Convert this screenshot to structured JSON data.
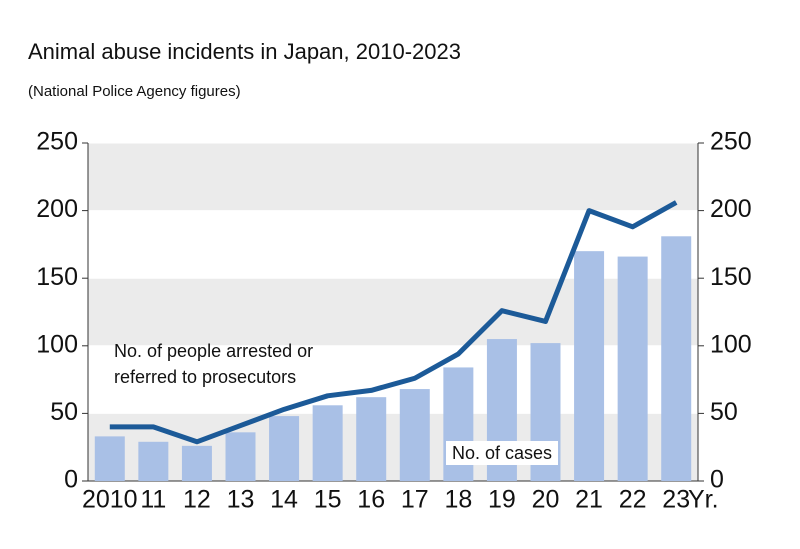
{
  "chart_data": {
    "type": "bar-line",
    "title": "Animal abuse incidents in Japan, 2010-2023",
    "subtitle": "(National Police Agency figures)",
    "x_label": "Yr.",
    "categories": [
      "2010",
      "11",
      "12",
      "13",
      "14",
      "15",
      "16",
      "17",
      "18",
      "19",
      "20",
      "21",
      "22",
      "23"
    ],
    "series": [
      {
        "name": "No. of cases",
        "type": "bar",
        "color": "#a9c0e6",
        "values": [
          33,
          29,
          26,
          36,
          48,
          56,
          62,
          68,
          84,
          105,
          102,
          170,
          166,
          181
        ]
      },
      {
        "name": "No. of people arrested or\nreferred to prosecutors",
        "type": "line",
        "axis": "y2",
        "color": "#1c5a98",
        "values": [
          40,
          40,
          29,
          41,
          53,
          63,
          67,
          76,
          94,
          126,
          118,
          200,
          188,
          206
        ]
      }
    ],
    "ylim": [
      0,
      250
    ],
    "yticks": [
      0,
      50,
      100,
      150,
      200,
      250
    ],
    "y2lim": [
      0,
      250
    ],
    "y2ticks": [
      0,
      50,
      100,
      150,
      200,
      250
    ],
    "grid": true
  }
}
